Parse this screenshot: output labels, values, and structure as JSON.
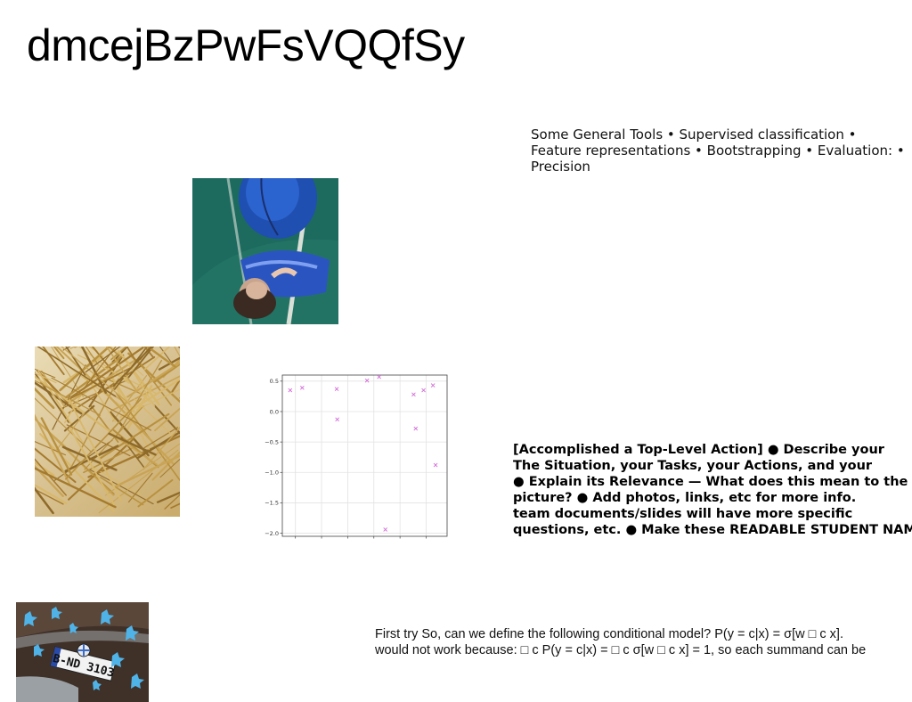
{
  "title": "dmcejBzPwFsVQQfSy",
  "tools_text": "Some General Tools • Supervised classification • Feature representations • Bootstrapping • Evaluation: • Precision",
  "action_lines": [
    "[Accomplished a Top-Level Action] ● Describe your",
    "The Situation, your Tasks, your Actions, and your",
    "● Explain its Relevance — What does this mean to the",
    "picture? ● Add photos, links, etc for more info.",
    "team documents/slides will have more specific",
    "questions, etc. ● Make these READABLE STUDENT NAME"
  ],
  "model_lines": [
    "First try So, can we define the following conditional model? P(y = c|x) = σ[w □ c x].",
    "would not work because: □ c P(y = c|x) = □ c σ[w □ c x] = 1, so each summand can be"
  ],
  "images": {
    "basketball": "basketball-player-photo",
    "sticks": "wooden-sticks-photo",
    "car": "car-license-plate-photo"
  },
  "plate_text": "B-ND 3103",
  "chart_data": {
    "type": "scatter",
    "marker": "x",
    "color": "#d36ad8",
    "xlim": [
      -1.75,
      1.4
    ],
    "ylim": [
      -2.05,
      0.6
    ],
    "xticks": [
      -1.5,
      -1.0,
      -0.5,
      0.0,
      0.5,
      1.0
    ],
    "xtick_labels": [
      "−1.5",
      "−1.0",
      "−0.5",
      "0.0",
      "0.5",
      "1.0"
    ],
    "yticks": [
      0.5,
      0.0,
      -0.5,
      -1.0,
      -1.5,
      -2.0
    ],
    "ytick_labels": [
      "0.5",
      "0.0",
      "−0.5",
      "−1.0",
      "−1.5",
      "−2.0"
    ],
    "grid": true,
    "points": [
      {
        "x": -1.6,
        "y": 0.35
      },
      {
        "x": -1.37,
        "y": 0.39
      },
      {
        "x": -0.71,
        "y": 0.37
      },
      {
        "x": -0.7,
        "y": -0.13
      },
      {
        "x": -0.13,
        "y": 0.51
      },
      {
        "x": 0.1,
        "y": 0.57
      },
      {
        "x": 0.22,
        "y": -1.94
      },
      {
        "x": 0.76,
        "y": 0.28
      },
      {
        "x": 0.8,
        "y": -0.28
      },
      {
        "x": 0.95,
        "y": 0.35
      },
      {
        "x": 1.13,
        "y": 0.43
      },
      {
        "x": 1.18,
        "y": -0.88
      }
    ]
  }
}
